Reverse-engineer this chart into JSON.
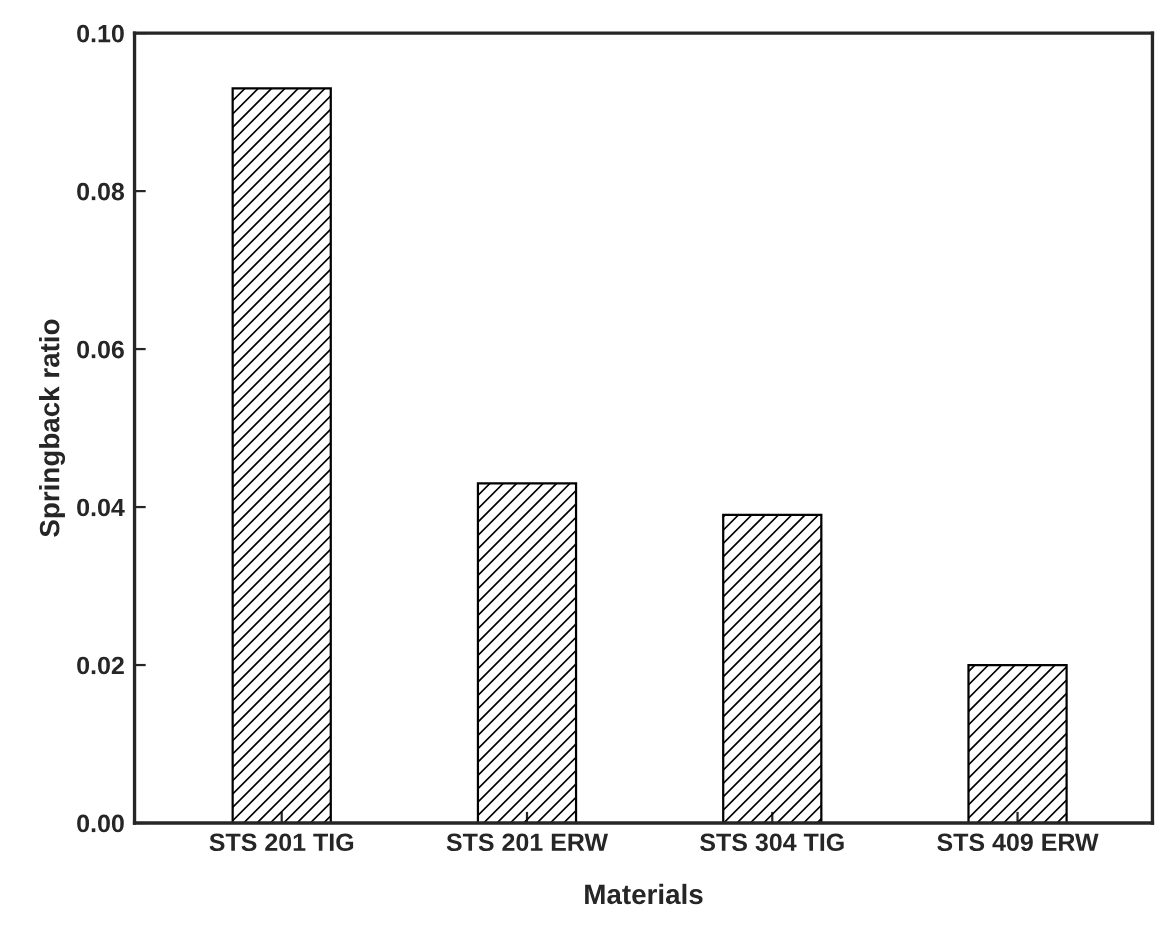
{
  "chart_data": {
    "type": "bar",
    "xlabel": "Materials",
    "ylabel": "Springback ratio",
    "categories": [
      "STS 201 TIG",
      "STS 201 ERW",
      "STS 304 TIG",
      "STS 409 ERW"
    ],
    "values": [
      0.093,
      0.043,
      0.039,
      0.02
    ],
    "color": "#000000",
    "ylim": [
      0,
      0.1
    ],
    "yticks": [
      {
        "value": 0,
        "label": "0.00"
      },
      {
        "value": 0.02,
        "label": "0.02"
      },
      {
        "value": 0.04,
        "label": "0.04"
      },
      {
        "value": 0.06,
        "label": "0.06"
      },
      {
        "value": 0.08,
        "label": "0.08"
      },
      {
        "value": 0.1,
        "label": "0.10"
      }
    ],
    "grid": false
  }
}
